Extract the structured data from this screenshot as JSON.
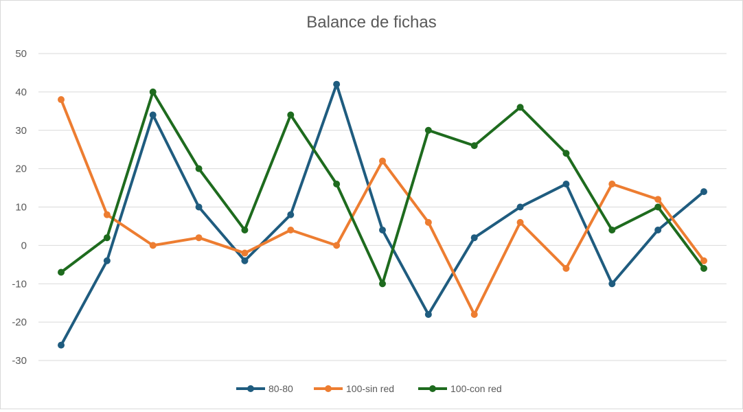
{
  "chart_data": {
    "type": "line",
    "title": "Balance de fichas",
    "xlabel": "",
    "ylabel": "",
    "ylim": [
      -30,
      50
    ],
    "yticks": [
      50,
      40,
      30,
      20,
      10,
      0,
      -10,
      -20,
      -30
    ],
    "x": [
      1,
      2,
      3,
      4,
      5,
      6,
      7,
      8,
      9,
      10,
      11,
      12,
      13,
      14,
      15
    ],
    "grid": true,
    "legend_position": "bottom",
    "series": [
      {
        "name": "80-80",
        "color": "#1f5c7f",
        "values": [
          -26,
          -4,
          34,
          10,
          -4,
          8,
          42,
          4,
          -18,
          2,
          10,
          16,
          -10,
          4,
          14
        ]
      },
      {
        "name": "100-sin red",
        "color": "#ed7d31",
        "values": [
          38,
          8,
          0,
          2,
          -2,
          4,
          0,
          22,
          6,
          -18,
          6,
          -6,
          16,
          12,
          -4
        ]
      },
      {
        "name": "100-con red",
        "color": "#1e6b1e",
        "values": [
          -7,
          2,
          40,
          20,
          4,
          34,
          16,
          -10,
          30,
          26,
          36,
          24,
          4,
          10,
          -6
        ]
      }
    ]
  }
}
